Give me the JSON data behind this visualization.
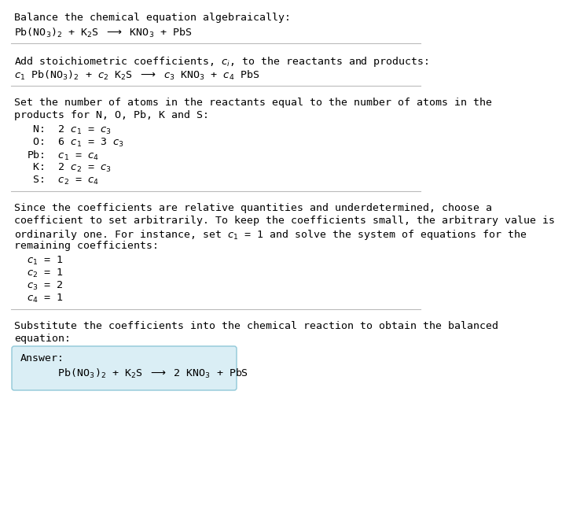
{
  "bg_color": "#ffffff",
  "text_color": "#000000",
  "answer_box_color": "#daeef5",
  "answer_box_edge": "#90c8d8",
  "section1_title": "Balance the chemical equation algebraically:",
  "section1_eq": "Pb(NO$_3$)$_2$ + K$_2$S $\\longrightarrow$ KNO$_3$ + PbS",
  "section2_title": "Add stoichiometric coefficients, $c_i$, to the reactants and products:",
  "section2_eq": "$c_1$ Pb(NO$_3$)$_2$ + $c_2$ K$_2$S $\\longrightarrow$ $c_3$ KNO$_3$ + $c_4$ PbS",
  "section3_title_line1": "Set the number of atoms in the reactants equal to the number of atoms in the",
  "section3_title_line2": "products for N, O, Pb, K and S:",
  "section3_equations": [
    " N:  2 $c_1$ = $c_3$",
    " O:  6 $c_1$ = 3 $c_3$",
    "Pb:  $c_1$ = $c_4$",
    " K:  2 $c_2$ = $c_3$",
    " S:  $c_2$ = $c_4$"
  ],
  "section4_title_line1": "Since the coefficients are relative quantities and underdetermined, choose a",
  "section4_title_line2": "coefficient to set arbitrarily. To keep the coefficients small, the arbitrary value is",
  "section4_title_line3": "ordinarily one. For instance, set $c_1$ = 1 and solve the system of equations for the",
  "section4_title_line4": "remaining coefficients:",
  "section4_equations": [
    "$c_1$ = 1",
    "$c_2$ = 1",
    "$c_3$ = 2",
    "$c_4$ = 1"
  ],
  "section5_title_line1": "Substitute the coefficients into the chemical reaction to obtain the balanced",
  "section5_title_line2": "equation:",
  "answer_label": "Answer:",
  "answer_eq": "      Pb(NO$_3$)$_2$ + K$_2$S $\\longrightarrow$ 2 KNO$_3$ + PbS",
  "font_size": 9.5,
  "mono_font": "DejaVu Sans Mono",
  "line_color": "#bbbbbb"
}
